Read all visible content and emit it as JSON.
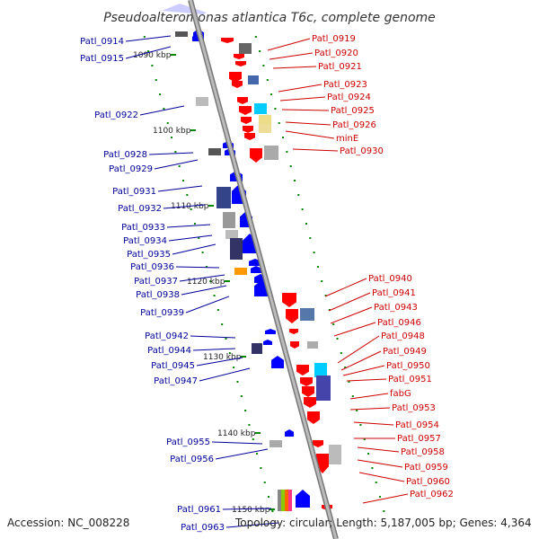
{
  "title": "Pseudoalteromonas atlantica T6c, complete genome",
  "footer": {
    "accession": "Accession: NC_008228",
    "summary": "Topology: circular; Length: 5,187,005 bp; Genes: 4,364"
  },
  "colors": {
    "forward_strand": "#0000ff",
    "reverse_strand": "#ff0000",
    "backbone": "#999999",
    "forward_label": "#000099",
    "reverse_label": "#cc0000",
    "tick_mark": "#008800"
  },
  "scale_labels": [
    "1090 kbp",
    "1100 kbp",
    "1110 kbp",
    "1120 kbp",
    "1130 kbp",
    "1140 kbp",
    "1150 kbp"
  ],
  "forward_labels": [
    "Patl_0914",
    "Patl_0915",
    "Patl_0922",
    "Patl_0928",
    "Patl_0929",
    "Patl_0931",
    "Patl_0932",
    "Patl_0933",
    "Patl_0934",
    "Patl_0935",
    "Patl_0936",
    "Patl_0937",
    "Patl_0938",
    "Patl_0939",
    "Patl_0942",
    "Patl_0944",
    "Patl_0945",
    "Patl_0947",
    "Patl_0955",
    "Patl_0956",
    "Patl_0961",
    "Patl_0963"
  ],
  "reverse_labels": [
    "Patl_0919",
    "Patl_0920",
    "Patl_0921",
    "Patl_0923",
    "Patl_0924",
    "Patl_0925",
    "Patl_0926",
    "minE",
    "Patl_0930",
    "Patl_0940",
    "Patl_0941",
    "Patl_0943",
    "Patl_0946",
    "Patl_0948",
    "Patl_0949",
    "Patl_0950",
    "Patl_0951",
    "fabG",
    "Patl_0953",
    "Patl_0954",
    "Patl_0957",
    "Patl_0958",
    "Patl_0959",
    "Patl_0960",
    "Patl_0962"
  ]
}
